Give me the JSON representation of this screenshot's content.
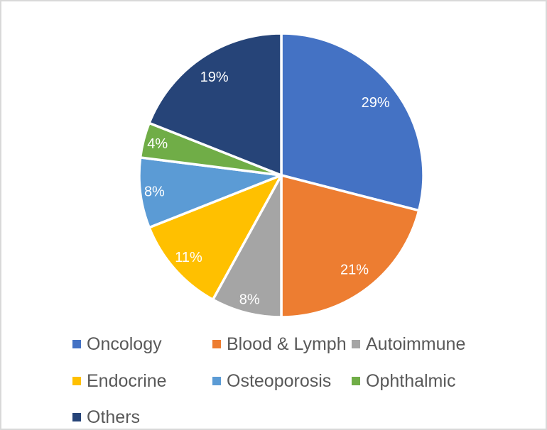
{
  "canvas": {
    "background": "#FFFFFF",
    "border_color": "#D9D9D9"
  },
  "chart_data": {
    "type": "pie",
    "categories": [
      "Oncology",
      "Blood & Lymph",
      "Autoimmune",
      "Endocrine",
      "Osteoporosis",
      "Ophthalmic",
      "Others"
    ],
    "values": [
      29,
      21,
      8,
      11,
      8,
      4,
      19
    ],
    "data_labels": [
      "29%",
      "21%",
      "8%",
      "11%",
      "8%",
      "4%",
      "19%"
    ],
    "slice_colors": [
      "#4472C4",
      "#ED7D31",
      "#A5A5A5",
      "#FFC000",
      "#5B9BD5",
      "#70AD47",
      "#264478"
    ],
    "data_label_color": "#FFFFFF",
    "separator_color": "#FFFFFF",
    "start_angle_deg": 0,
    "direction": "clockwise",
    "legend": {
      "position": "bottom",
      "columns": 3,
      "entries": [
        "Oncology",
        "Blood & Lymph",
        "Autoimmune",
        "Endocrine",
        "Osteoporosis",
        "Ophthalmic",
        "Others"
      ],
      "text_color": "#595959"
    }
  }
}
